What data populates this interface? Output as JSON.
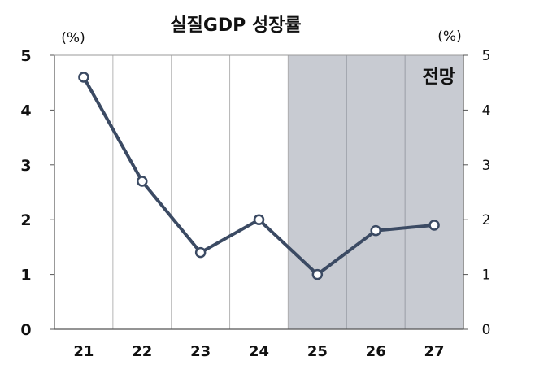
{
  "chart_data": {
    "type": "line",
    "title": "실질GDP 성장률",
    "y_unit_left": "(%)",
    "y_unit_right": "(%)",
    "categories": [
      "21",
      "22",
      "23",
      "24",
      "25",
      "26",
      "27"
    ],
    "series": [
      {
        "values": [
          4.6,
          2.7,
          1.4,
          2.0,
          1.0,
          1.8,
          1.9
        ]
      }
    ],
    "ylim": [
      0,
      5
    ],
    "yticks": [
      "0",
      "1",
      "2",
      "3",
      "4",
      "5"
    ],
    "grid": "vertical",
    "forecast_region": {
      "from_category": "25",
      "to_category": "27",
      "label": "전망"
    },
    "colors": {
      "line": "#3b4a63",
      "marker_fill": "#ffffff",
      "forecast_shade": "#c8cbd2",
      "grid": "#b5b5b5"
    }
  }
}
